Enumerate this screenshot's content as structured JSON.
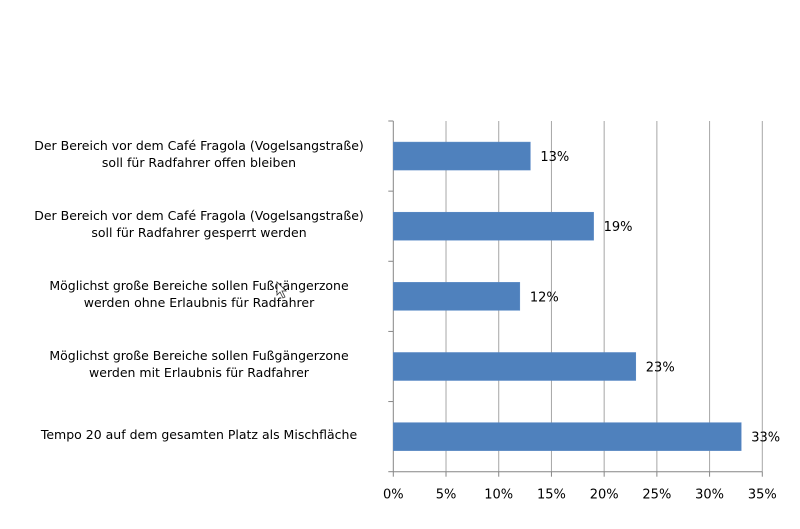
{
  "chart_data": {
    "type": "bar",
    "orientation": "horizontal",
    "title": "",
    "xlabel": "",
    "ylabel": "",
    "categories": [
      [
        "Der Bereich vor dem Café Fragola (Vogelsangstraße)",
        "soll für Radfahrer offen bleiben"
      ],
      [
        "Der Bereich vor dem Café Fragola (Vogelsangstraße)",
        "soll für Radfahrer gesperrt werden"
      ],
      [
        "Möglichst große Bereiche sollen Fußgängerzone",
        "werden ohne Erlaubnis für Radfahrer"
      ],
      [
        "Möglichst große Bereiche sollen Fußgängerzone",
        "werden mit Erlaubnis für Radfahrer"
      ],
      [
        "Tempo 20 auf dem gesamten Platz als Mischfläche"
      ]
    ],
    "values": [
      13,
      19,
      12,
      23,
      33
    ],
    "data_labels": [
      "13%",
      "19%",
      "12%",
      "23%",
      "33%"
    ],
    "xlim": [
      0,
      35
    ],
    "xticks": [
      0,
      5,
      10,
      15,
      20,
      25,
      30,
      35
    ],
    "xtick_labels": [
      "0%",
      "5%",
      "10%",
      "15%",
      "20%",
      "25%",
      "30%",
      "35%"
    ],
    "grid": true,
    "legend": "none",
    "colors": {
      "bar": "#4f81bd",
      "grid": "#a6a6a6",
      "axis": "#868686"
    }
  }
}
